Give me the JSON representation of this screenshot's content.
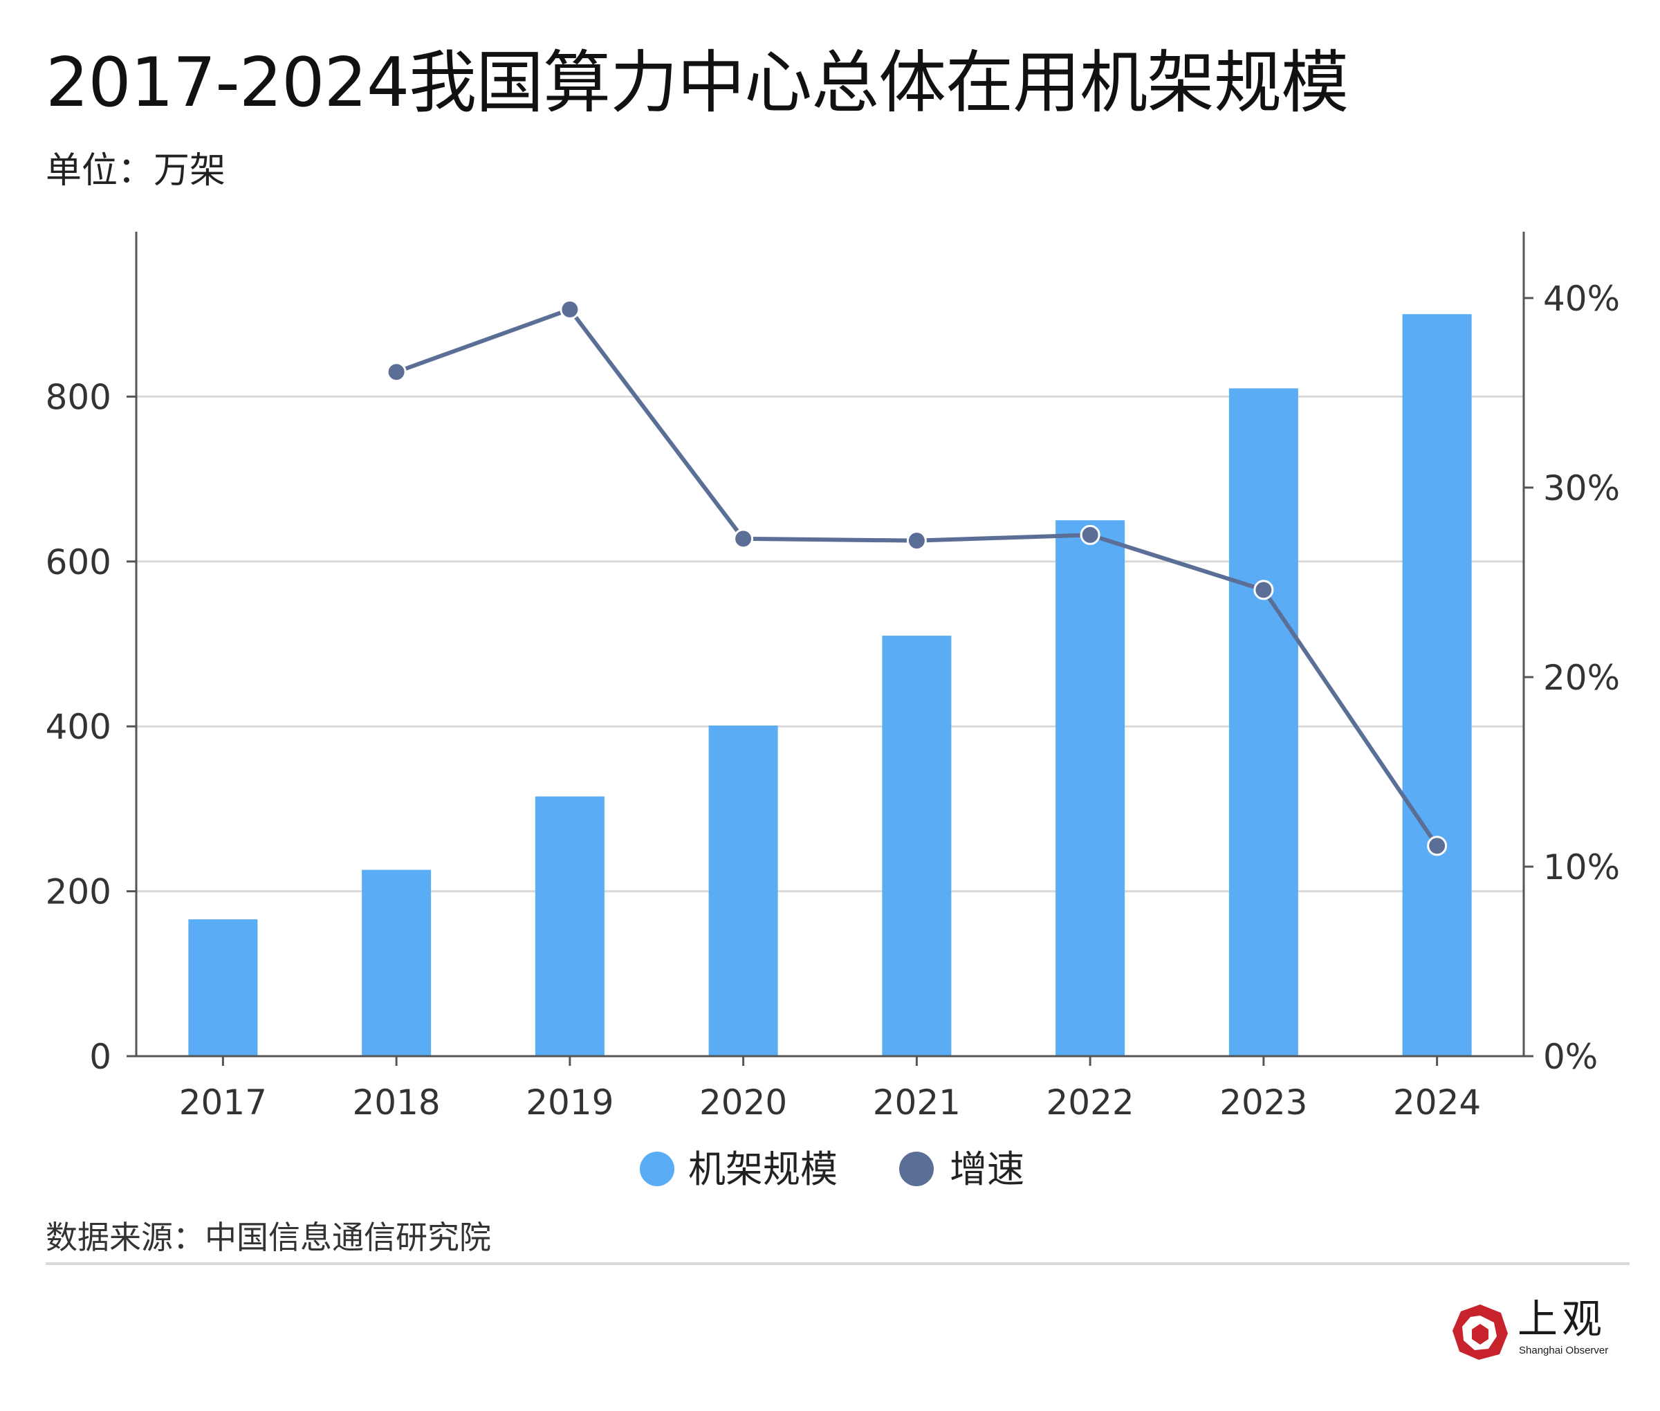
{
  "title": "2017-2024我国算力中心总体在用机架规模",
  "unit": "单位：万架",
  "source": "数据来源：中国信息通信研究院",
  "logo": {
    "cn": "上观",
    "en": "Shanghai Observer"
  },
  "colors": {
    "bar": "#5aadf4",
    "line": "#5b6f96",
    "grid": "#d9d9d9",
    "axis": "#555555",
    "logo_red": "#c8232c"
  },
  "chart_data": {
    "type": "bar",
    "categories": [
      "2017",
      "2018",
      "2019",
      "2020",
      "2021",
      "2022",
      "2023",
      "2024"
    ],
    "series": [
      {
        "name": "机架规模",
        "type": "bar",
        "axis": "left",
        "values": [
          166,
          226,
          315,
          401,
          510,
          650,
          810,
          900
        ]
      },
      {
        "name": "增速",
        "type": "line",
        "axis": "right",
        "values": [
          null,
          36.1,
          39.4,
          27.3,
          27.2,
          27.5,
          24.6,
          11.1
        ]
      }
    ],
    "y_left": {
      "ylim": [
        0,
        1000
      ],
      "ticks": [
        0,
        200,
        400,
        600,
        800
      ],
      "tick_labels": [
        "0",
        "200",
        "400",
        "600",
        "800"
      ]
    },
    "y_right": {
      "ylim": [
        0,
        43.5
      ],
      "ticks": [
        0,
        10,
        20,
        30,
        40
      ],
      "tick_labels": [
        "0%",
        "10%",
        "20%",
        "30%",
        "40%"
      ]
    },
    "grid": true,
    "legend_position": "bottom-center"
  }
}
